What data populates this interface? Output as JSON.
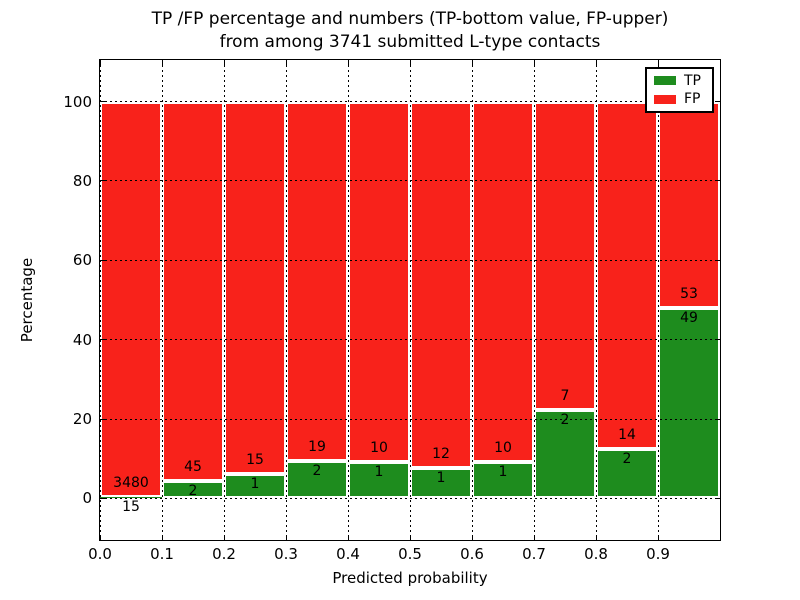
{
  "title": {
    "line1": "TP /FP percentage and numbers (TP-bottom value, FP-upper)",
    "line2": "from among 3741 submitted L-type contacts"
  },
  "axes": {
    "xlabel": "Predicted probability",
    "ylabel": "Percentage"
  },
  "legend": [
    {
      "label": "TP",
      "color": "#1E8C1E"
    },
    {
      "label": "FP",
      "color": "#F8221B"
    }
  ],
  "colors": {
    "tp": "#1E8C1E",
    "fp": "#F8221B",
    "bar_edge": "#ffffff",
    "grid": "#000000",
    "text": "#000000",
    "background": "#ffffff"
  },
  "chart_data": {
    "type": "bar",
    "stacked": true,
    "normalized_to_percent": true,
    "title": "TP /FP percentage and numbers (TP-bottom value, FP-upper) from among 3741 submitted L-type contacts",
    "xlabel": "Predicted probability",
    "ylabel": "Percentage",
    "total_contacts": 3741,
    "categories": [
      "0.0-0.1",
      "0.1-0.2",
      "0.2-0.3",
      "0.3-0.4",
      "0.4-0.5",
      "0.5-0.6",
      "0.6-0.7",
      "0.7-0.8",
      "0.8-0.9",
      "0.9-1.0"
    ],
    "bin_starts": [
      0.0,
      0.1,
      0.2,
      0.3,
      0.4,
      0.5,
      0.6,
      0.7,
      0.8,
      0.9
    ],
    "bin_width": 0.1,
    "series": [
      {
        "name": "TP",
        "position": "bottom",
        "values": [
          15,
          2,
          1,
          2,
          1,
          1,
          1,
          2,
          2,
          49
        ]
      },
      {
        "name": "FP",
        "position": "top",
        "values": [
          3480,
          45,
          15,
          19,
          10,
          12,
          10,
          7,
          14,
          53
        ]
      }
    ],
    "x_ticks": [
      0.0,
      0.1,
      0.2,
      0.3,
      0.4,
      0.5,
      0.6,
      0.7,
      0.8,
      0.9
    ],
    "x_tick_labels": [
      "0.0",
      "0.1",
      "0.2",
      "0.3",
      "0.4",
      "0.5",
      "0.6",
      "0.7",
      "0.8",
      "0.9"
    ],
    "y_ticks": [
      0,
      20,
      40,
      60,
      80,
      100
    ],
    "y_tick_labels": [
      "0",
      "20",
      "40",
      "60",
      "80",
      "100"
    ],
    "xlim": [
      0.0,
      1.0
    ],
    "ylim": [
      -10.5,
      110.5
    ],
    "grid": "dotted",
    "legend_position": "upper right"
  }
}
